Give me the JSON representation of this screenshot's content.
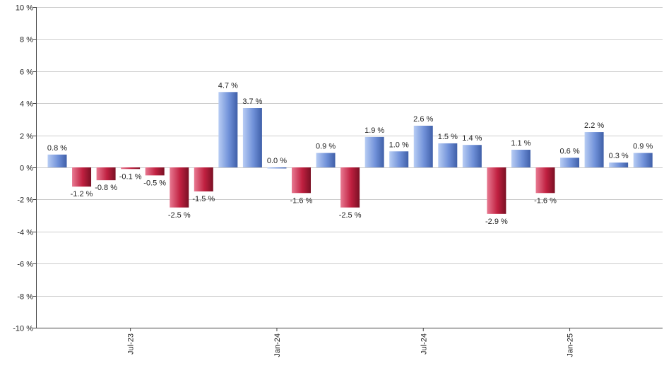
{
  "chart_data": {
    "type": "bar",
    "title": "",
    "xlabel": "",
    "ylabel": "",
    "ylim": [
      -10,
      10
    ],
    "yticks": [
      -10,
      -8,
      -6,
      -4,
      -2,
      0,
      2,
      4,
      6,
      8,
      10
    ],
    "ytick_labels": [
      "-10 %",
      "-8 %",
      "-6 %",
      "-4 %",
      "-2 %",
      "0 %",
      "2 %",
      "4 %",
      "6 %",
      "8 %",
      "10 %"
    ],
    "grid": true,
    "x_tick_labels": [
      {
        "index": 3,
        "label": "Jul-23"
      },
      {
        "index": 9,
        "label": "Jan-24"
      },
      {
        "index": 15,
        "label": "Jul-24"
      },
      {
        "index": 21,
        "label": "Jan-25"
      }
    ],
    "values": [
      0.8,
      -1.2,
      -0.8,
      -0.1,
      -0.5,
      -2.5,
      -1.5,
      4.7,
      3.7,
      0.0,
      -1.6,
      0.9,
      -2.5,
      1.9,
      1.0,
      2.6,
      1.5,
      1.4,
      -2.9,
      1.1,
      -1.6,
      0.6,
      2.2,
      0.3,
      0.9
    ],
    "data_labels": [
      "0.8 %",
      "-1.2 %",
      "-0.8 %",
      "-0.1 %",
      "-0.5 %",
      "-2.5 %",
      "-1.5 %",
      "4.7 %",
      "3.7 %",
      "0.0 %",
      "-1.6 %",
      "0.9 %",
      "-2.5 %",
      "1.9 %",
      "1.0 %",
      "2.6 %",
      "1.5 %",
      "1.4 %",
      "-2.9 %",
      "1.1 %",
      "-1.6 %",
      "0.6 %",
      "2.2 %",
      "0.3 %",
      "0.9 %"
    ],
    "colors": {
      "positive": "#6f90d8",
      "positive_light": "#b8cdf4",
      "positive_dark": "#3f5fa8",
      "negative": "#c02040",
      "negative_light": "#e87a92",
      "negative_dark": "#7a1024",
      "grid": "#cccccc",
      "axis": "#444444"
    }
  }
}
